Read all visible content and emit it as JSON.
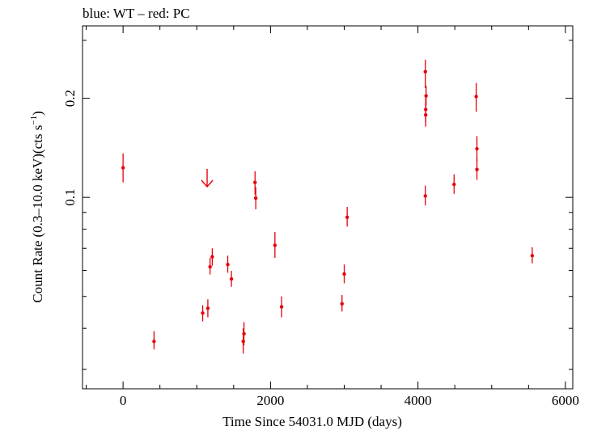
{
  "chart_data": {
    "type": "scatter",
    "title": "blue: WT – red: PC",
    "xlabel": "Time Since 54031.0 MJD (days)",
    "ylabel": "Count Rate (0.3–10.0 keV)(cts s",
    "ylabel_sup": "−1",
    "ylabel_tail": ")",
    "y_scale": "log",
    "xlim": [
      -550,
      6100
    ],
    "ylim": [
      0.0262,
      0.332
    ],
    "x_ticks": [
      0,
      2000,
      4000,
      6000
    ],
    "x_tick_labels": [
      "0",
      "2000",
      "4000",
      "6000"
    ],
    "y_ticks": [
      0.1,
      0.2
    ],
    "y_tick_labels": [
      "0.1",
      "0.2"
    ],
    "grid": false,
    "series": [
      {
        "mode": "PC",
        "color": "#e8000b",
        "points": [
          {
            "x": 0,
            "y": 0.123,
            "ylo": 0.111,
            "yhi": 0.136
          },
          {
            "x": 420,
            "y": 0.0365,
            "ylo": 0.0345,
            "yhi": 0.0392
          },
          {
            "x": 1080,
            "y": 0.0445,
            "ylo": 0.042,
            "yhi": 0.047
          },
          {
            "x": 1150,
            "y": 0.046,
            "ylo": 0.0432,
            "yhi": 0.049
          },
          {
            "x": 1180,
            "y": 0.0615,
            "ylo": 0.0583,
            "yhi": 0.0655
          },
          {
            "x": 1210,
            "y": 0.066,
            "ylo": 0.062,
            "yhi": 0.07
          },
          {
            "x": 1420,
            "y": 0.0625,
            "ylo": 0.059,
            "yhi": 0.0665
          },
          {
            "x": 1470,
            "y": 0.0565,
            "ylo": 0.0535,
            "yhi": 0.0598
          },
          {
            "x": 1630,
            "y": 0.0365,
            "ylo": 0.0335,
            "yhi": 0.04
          },
          {
            "x": 1640,
            "y": 0.0385,
            "ylo": 0.0355,
            "yhi": 0.0418
          },
          {
            "x": 1790,
            "y": 0.111,
            "ylo": 0.102,
            "yhi": 0.12
          },
          {
            "x": 1800,
            "y": 0.0995,
            "ylo": 0.092,
            "yhi": 0.1075
          },
          {
            "x": 2060,
            "y": 0.0715,
            "ylo": 0.0655,
            "yhi": 0.0785
          },
          {
            "x": 2150,
            "y": 0.0465,
            "ylo": 0.0432,
            "yhi": 0.05
          },
          {
            "x": 2970,
            "y": 0.0475,
            "ylo": 0.045,
            "yhi": 0.0505
          },
          {
            "x": 3000,
            "y": 0.0585,
            "ylo": 0.0548,
            "yhi": 0.0625
          },
          {
            "x": 3040,
            "y": 0.087,
            "ylo": 0.0815,
            "yhi": 0.0935
          },
          {
            "x": 4100,
            "y": 0.101,
            "ylo": 0.0945,
            "yhi": 0.1085
          },
          {
            "x": 4100,
            "y": 0.241,
            "ylo": 0.215,
            "yhi": 0.262
          },
          {
            "x": 4105,
            "y": 0.185,
            "ylo": 0.169,
            "yhi": 0.203
          },
          {
            "x": 4105,
            "y": 0.178,
            "ylo": 0.164,
            "yhi": 0.194
          },
          {
            "x": 4110,
            "y": 0.2035,
            "ylo": 0.19,
            "yhi": 0.2185
          },
          {
            "x": 4490,
            "y": 0.1095,
            "ylo": 0.1025,
            "yhi": 0.1175
          },
          {
            "x": 4790,
            "y": 0.2025,
            "ylo": 0.182,
            "yhi": 0.2225
          },
          {
            "x": 4800,
            "y": 0.1405,
            "ylo": 0.1285,
            "yhi": 0.1535
          },
          {
            "x": 4800,
            "y": 0.1215,
            "ylo": 0.113,
            "yhi": 0.131
          },
          {
            "x": 5550,
            "y": 0.0665,
            "ylo": 0.063,
            "yhi": 0.0705
          }
        ]
      }
    ],
    "upper_limits": [
      {
        "x": 1140,
        "y": 0.122,
        "color": "#e8000b"
      }
    ]
  }
}
